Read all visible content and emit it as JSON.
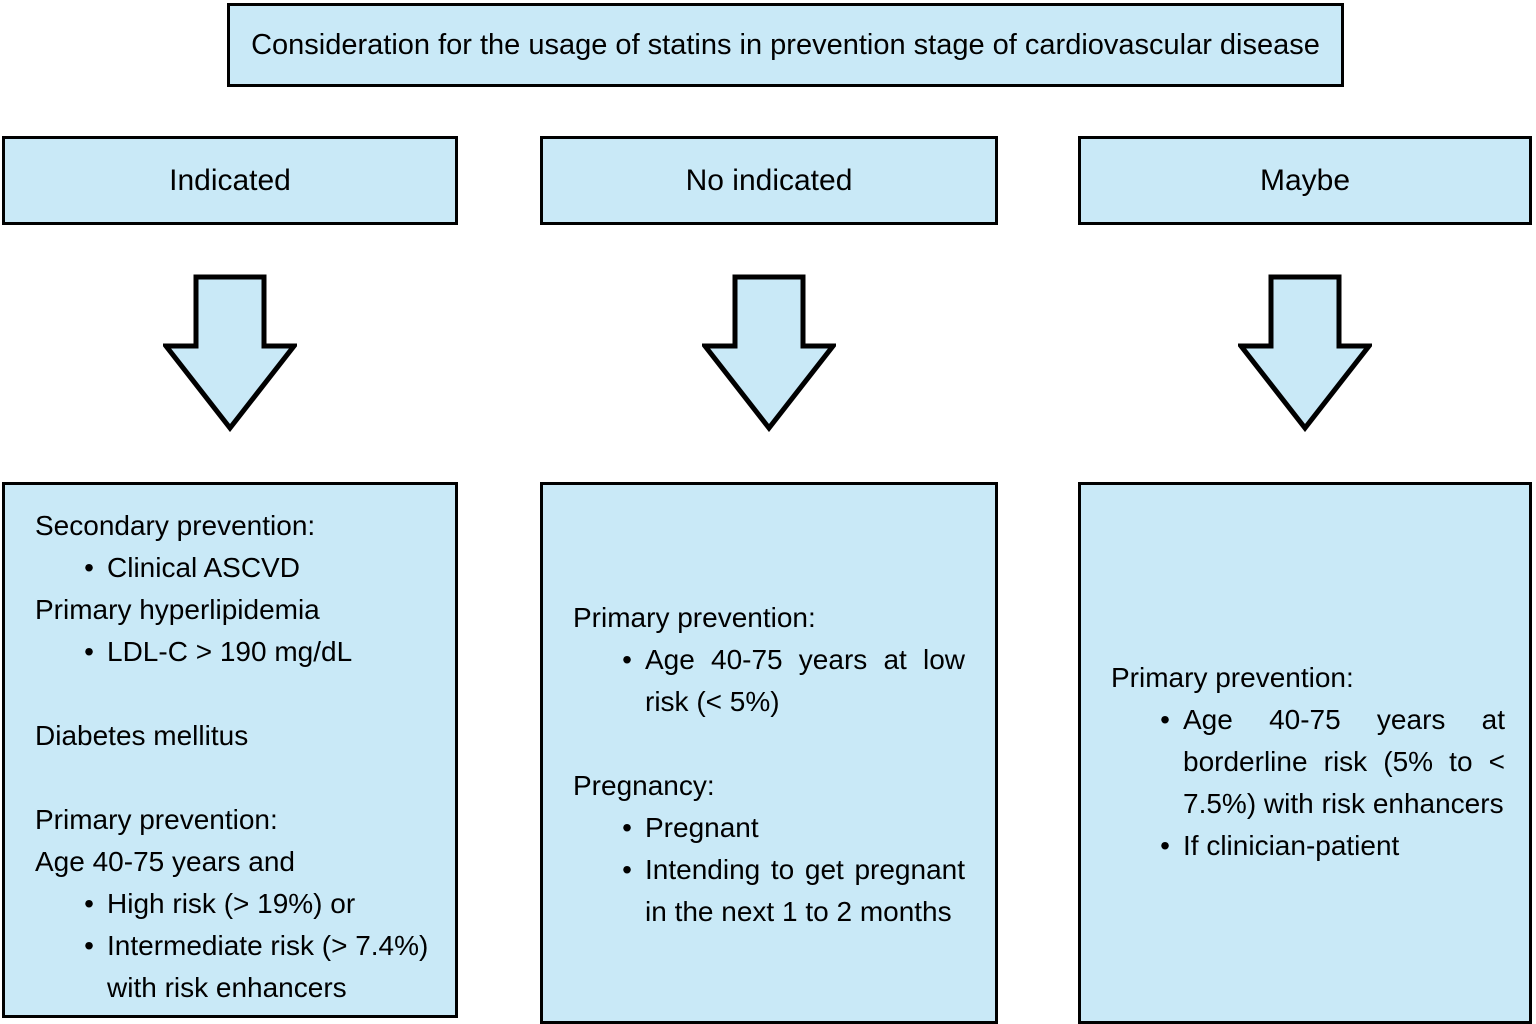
{
  "title": "Consideration for the usage of statins in prevention stage of cardiovascular disease",
  "bullet_char": "•",
  "colors": {
    "box_fill": "#c9e9f7",
    "box_border": "#000000",
    "background": "#ffffff",
    "text": "#000000"
  },
  "columns": [
    {
      "header": "Indicated",
      "content": [
        {
          "type": "text",
          "text": "Secondary prevention:"
        },
        {
          "type": "bullet",
          "text": "Clinical ASCVD"
        },
        {
          "type": "text",
          "text": "Primary hyperlipidemia"
        },
        {
          "type": "bullet",
          "text": "LDL-C > 190 mg/dL"
        },
        {
          "type": "spacer"
        },
        {
          "type": "text",
          "text": "Diabetes mellitus"
        },
        {
          "type": "spacer"
        },
        {
          "type": "text",
          "text": "Primary prevention:"
        },
        {
          "type": "text",
          "text": "Age 40-75 years and"
        },
        {
          "type": "bullet",
          "text": "High risk (> 19%) or"
        },
        {
          "type": "bullet",
          "text": "Intermediate risk (> 7.4%) with risk enhancers"
        }
      ]
    },
    {
      "header": "No indicated",
      "content": [
        {
          "type": "text",
          "text": "Primary prevention:"
        },
        {
          "type": "bullet",
          "text": "Age 40-75 years at low risk (< 5%)"
        },
        {
          "type": "spacer"
        },
        {
          "type": "text",
          "text": "Pregnancy:"
        },
        {
          "type": "bullet",
          "text": "Pregnant"
        },
        {
          "type": "bullet",
          "text": "Intending to get pregnant in the next 1 to 2 months"
        }
      ]
    },
    {
      "header": "Maybe",
      "content": [
        {
          "type": "text",
          "text": "Primary prevention:"
        },
        {
          "type": "bullet",
          "text": "Age 40-75 years at borderline risk (5% to < 7.5%) with risk enhancers"
        },
        {
          "type": "bullet",
          "text": "If clinician-patient"
        }
      ]
    }
  ]
}
